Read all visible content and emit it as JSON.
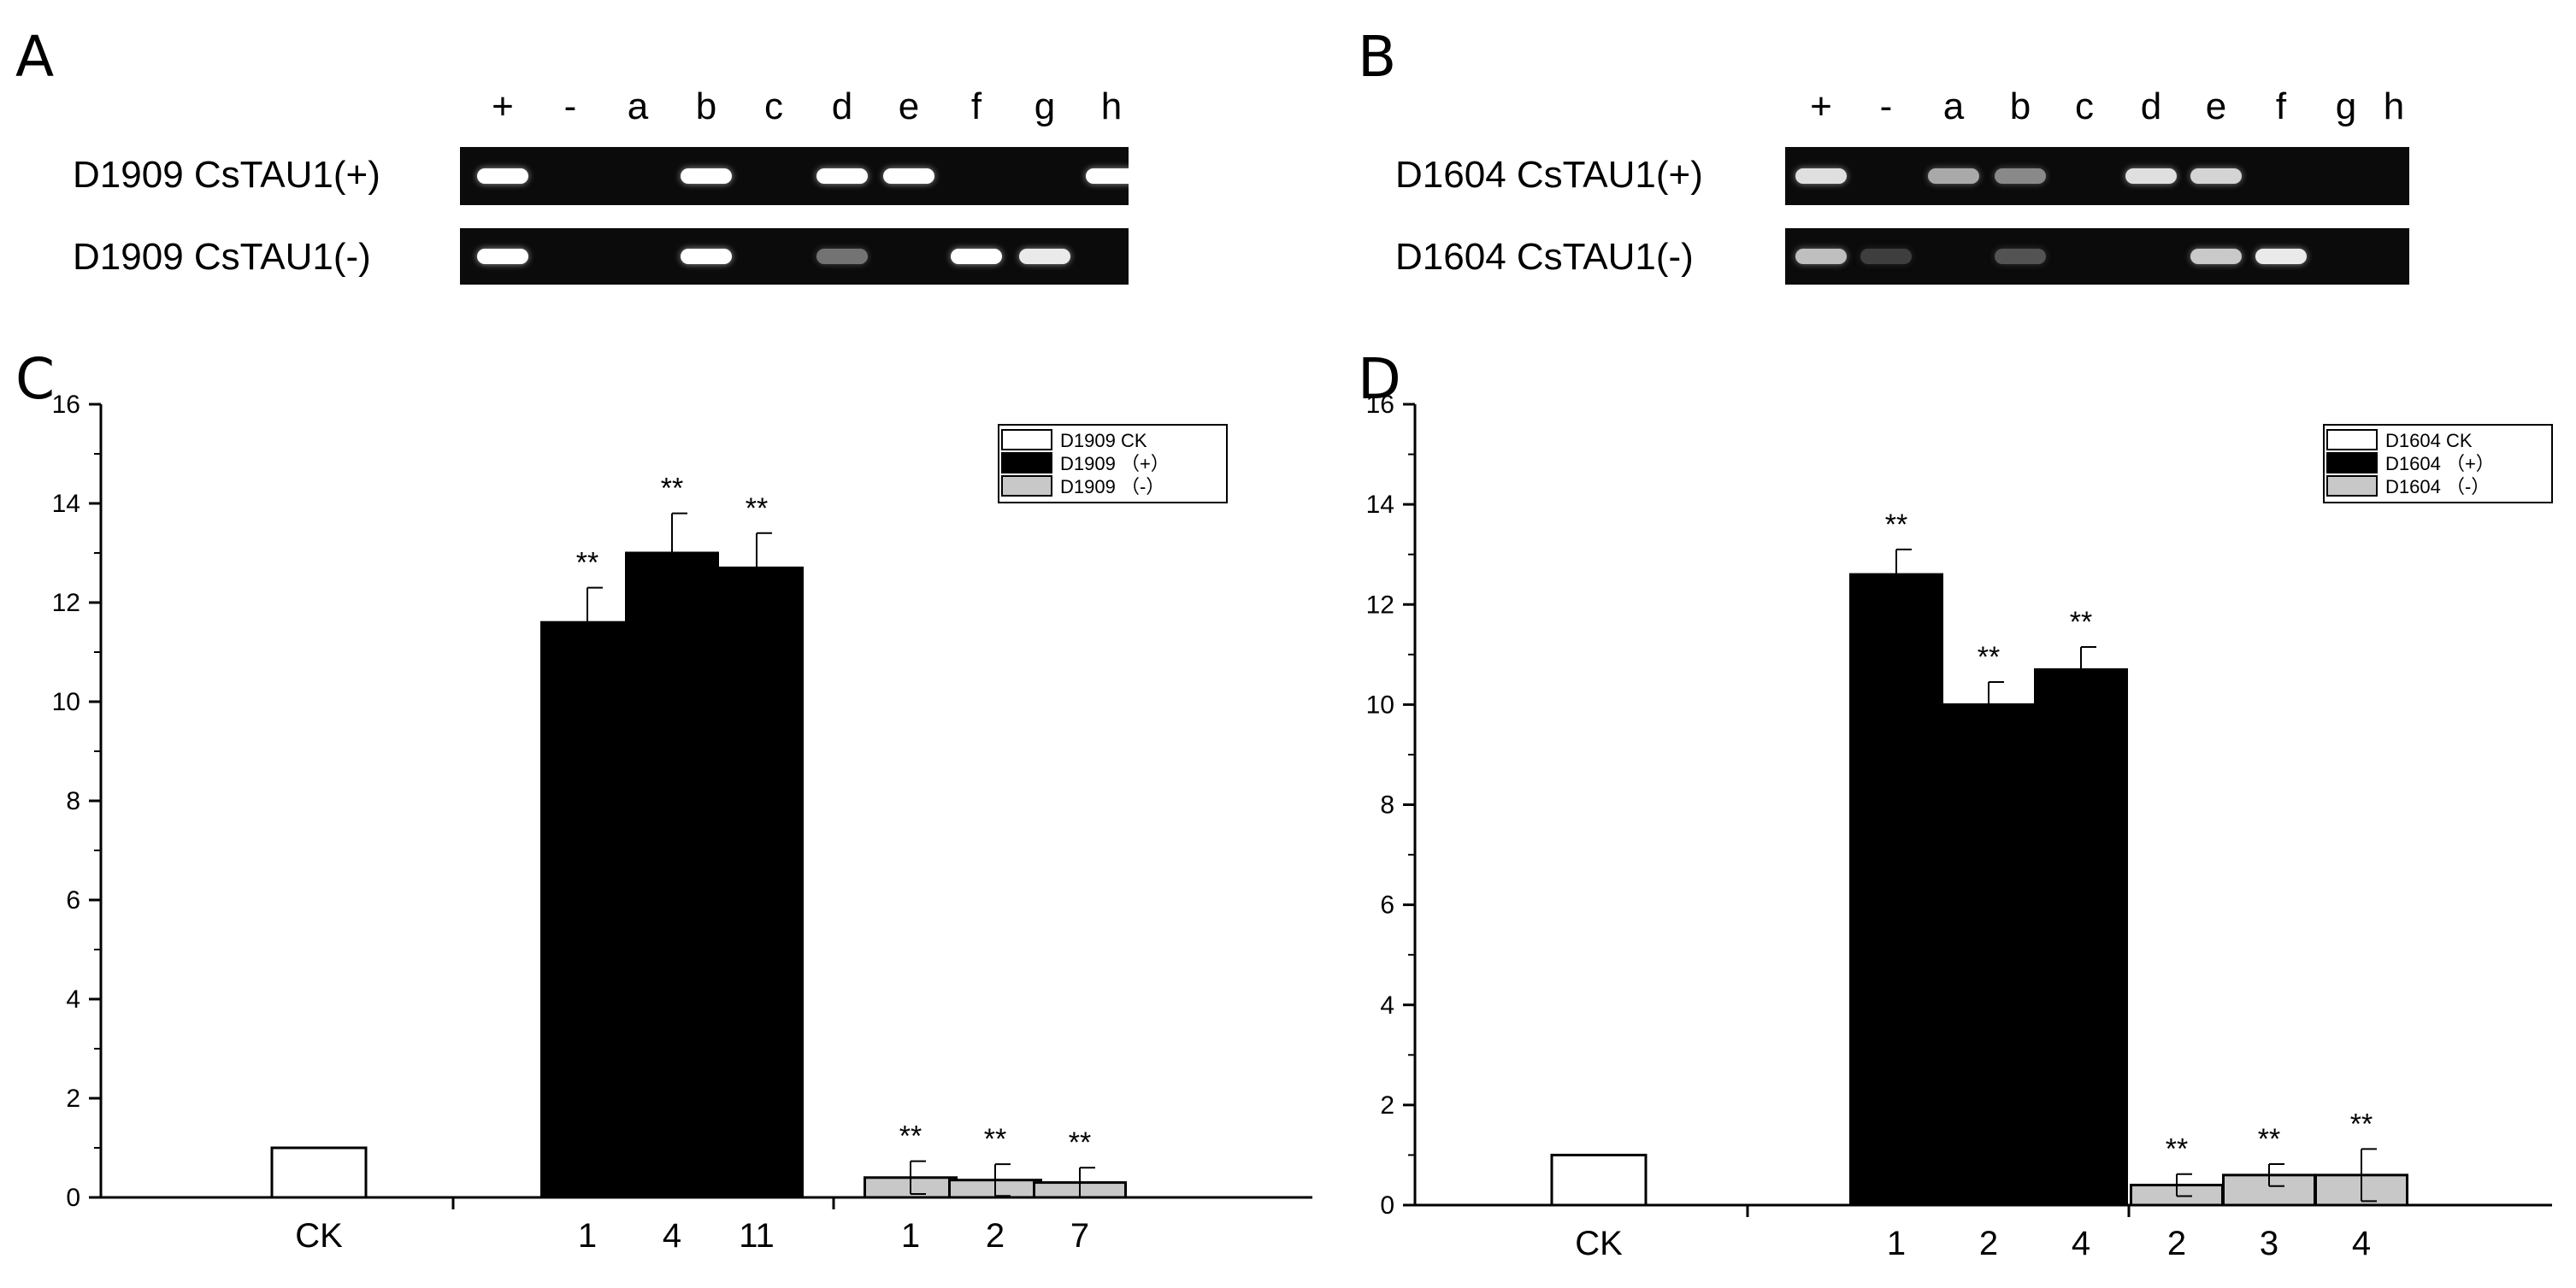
{
  "panels": {
    "A": "A",
    "B": "B",
    "C": "C",
    "D": "D"
  },
  "gel_A": {
    "lanes": [
      "+",
      "-",
      "a",
      "b",
      "c",
      "d",
      "e",
      "f",
      "g",
      "h"
    ],
    "row1_label": "D1909  CsTAU1(+)",
    "row2_label": "D1909  CsTAU1(-)",
    "row1_bands": [
      1,
      0,
      0,
      1,
      0,
      1,
      1,
      0,
      0,
      1
    ],
    "row2_bands": [
      1,
      0,
      0,
      1,
      0,
      0.35,
      0,
      1,
      0.9,
      0
    ]
  },
  "gel_B": {
    "lanes": [
      "+",
      "-",
      "a",
      "b",
      "c",
      "d",
      "e",
      "f",
      "g",
      "h"
    ],
    "row1_label": "D1604 CsTAU1(+)",
    "row2_label": "D1604 CsTAU1(-)",
    "row1_bands": [
      0.85,
      0,
      0.6,
      0.45,
      0,
      0.85,
      0.8,
      0,
      0,
      0
    ],
    "row2_bands": [
      0.7,
      0.1,
      0,
      0.2,
      0,
      0,
      0.75,
      0.9,
      0,
      0
    ]
  },
  "chart_data": [
    {
      "type": "bar",
      "panel": "C",
      "ylim": [
        0,
        16
      ],
      "yticks": [
        0,
        2,
        4,
        6,
        8,
        10,
        12,
        14,
        16
      ],
      "groups": [
        {
          "label": "CK",
          "series": "D1909 CK",
          "bars": [
            {
              "tick": "",
              "value": 1.0,
              "err": 0,
              "sig": ""
            }
          ]
        },
        {
          "label": "",
          "series": "D1909 (+)",
          "bars": [
            {
              "tick": "1",
              "value": 11.6,
              "err": 0.7,
              "sig": "**"
            },
            {
              "tick": "4",
              "value": 13.0,
              "err": 0.8,
              "sig": "**"
            },
            {
              "tick": "11",
              "value": 12.7,
              "err": 0.7,
              "sig": "**"
            }
          ]
        },
        {
          "label": "",
          "series": "D1909 (-)",
          "bars": [
            {
              "tick": "1",
              "value": 0.4,
              "err": 0.33,
              "sig": "**"
            },
            {
              "tick": "2",
              "value": 0.35,
              "err": 0.32,
              "sig": "**"
            },
            {
              "tick": "7",
              "value": 0.3,
              "err": 0.3,
              "sig": "**"
            }
          ]
        }
      ],
      "legend": [
        {
          "name": "D1909 CK",
          "color": "#ffffff"
        },
        {
          "name": "D1909 （+）",
          "color": "#000000"
        },
        {
          "name": "D1909 （-）",
          "color": "#c8c8c8"
        }
      ],
      "legend_position": "top-right"
    },
    {
      "type": "bar",
      "panel": "D",
      "ylim": [
        0,
        16
      ],
      "yticks": [
        0,
        2,
        4,
        6,
        8,
        10,
        12,
        14,
        16
      ],
      "groups": [
        {
          "label": "CK",
          "series": "D1604 CK",
          "bars": [
            {
              "tick": "",
              "value": 1.0,
              "err": 0,
              "sig": ""
            }
          ]
        },
        {
          "label": "",
          "series": "D1604 (+)",
          "bars": [
            {
              "tick": "1",
              "value": 12.6,
              "err": 0.5,
              "sig": "**"
            },
            {
              "tick": "2",
              "value": 10.0,
              "err": 0.45,
              "sig": "**"
            },
            {
              "tick": "4",
              "value": 10.7,
              "err": 0.45,
              "sig": "**"
            }
          ]
        },
        {
          "label": "",
          "series": "D1604 (-)",
          "bars": [
            {
              "tick": "2",
              "value": 0.4,
              "err": 0.22,
              "sig": "**"
            },
            {
              "tick": "3",
              "value": 0.6,
              "err": 0.22,
              "sig": "**"
            },
            {
              "tick": "4",
              "value": 0.6,
              "err": 0.52,
              "sig": "**"
            }
          ]
        }
      ],
      "legend": [
        {
          "name": "D1604 CK",
          "color": "#ffffff"
        },
        {
          "name": "D1604 （+）",
          "color": "#000000"
        },
        {
          "name": "D1604 （-）",
          "color": "#c8c8c8"
        }
      ],
      "legend_position": "top-right"
    }
  ]
}
